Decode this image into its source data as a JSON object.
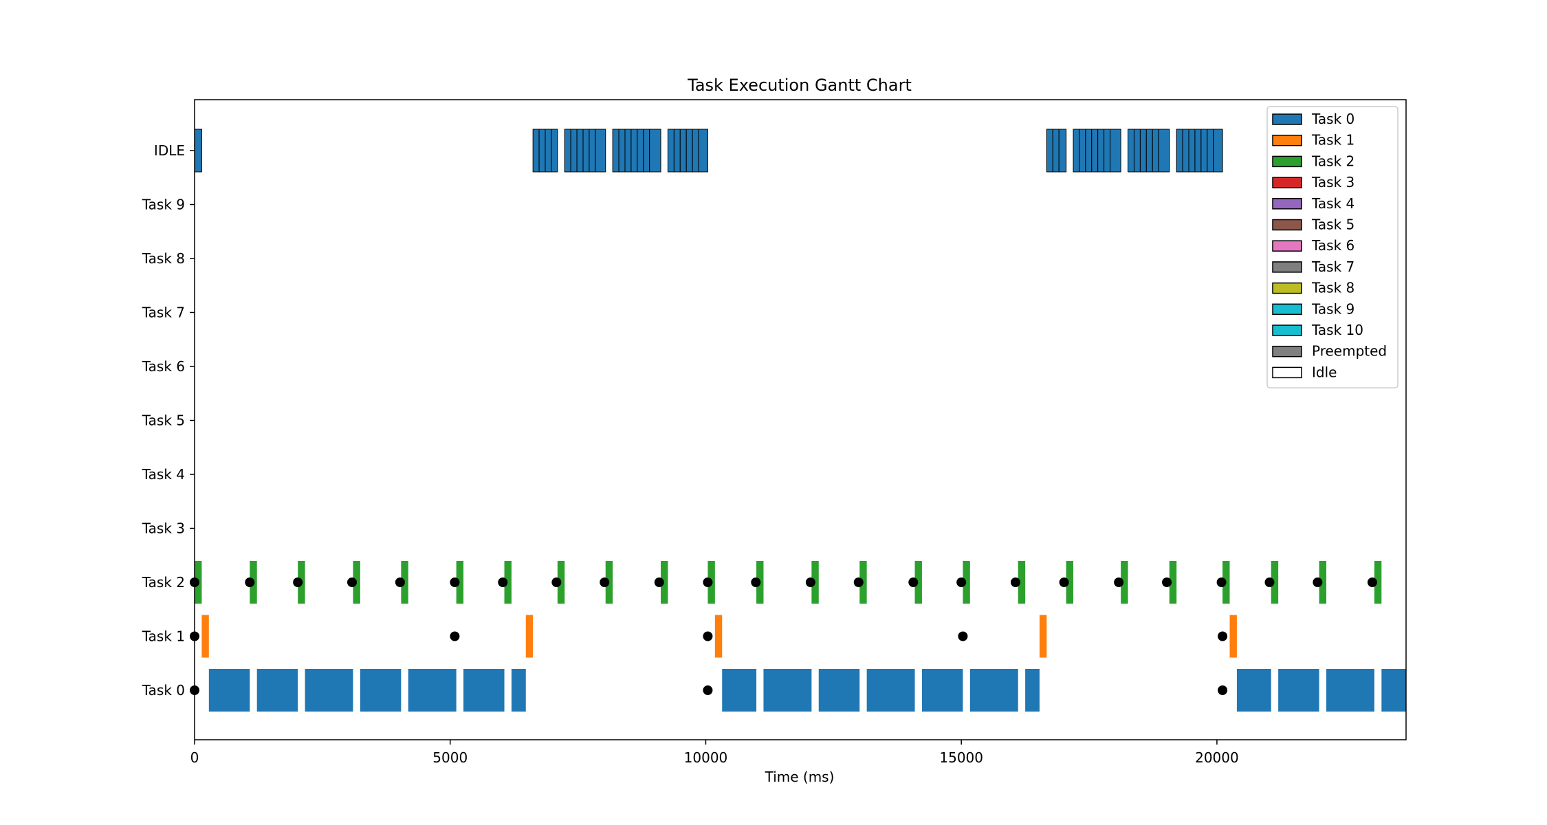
{
  "chart_data": {
    "type": "gantt",
    "title": "Task Execution Gantt Chart",
    "xlabel": "Time (ms)",
    "ylabel": "",
    "xlim": [
      0,
      23700
    ],
    "x_ticks": [
      0,
      5000,
      10000,
      15000,
      20000
    ],
    "rows": [
      "Task 0",
      "Task 1",
      "Task 2",
      "Task 3",
      "Task 4",
      "Task 5",
      "Task 6",
      "Task 7",
      "Task 8",
      "Task 9",
      "IDLE"
    ],
    "grid": false,
    "legend": {
      "position": "top-right",
      "entries": [
        {
          "label": "Task 0",
          "color": "#1f77b4"
        },
        {
          "label": "Task 1",
          "color": "#ff7f0e"
        },
        {
          "label": "Task 2",
          "color": "#2ca02c"
        },
        {
          "label": "Task 3",
          "color": "#d62728"
        },
        {
          "label": "Task 4",
          "color": "#9467bd"
        },
        {
          "label": "Task 5",
          "color": "#8c564b"
        },
        {
          "label": "Task 6",
          "color": "#e377c2"
        },
        {
          "label": "Task 7",
          "color": "#7f7f7f"
        },
        {
          "label": "Task 8",
          "color": "#bcbd22"
        },
        {
          "label": "Task 9",
          "color": "#17becf"
        },
        {
          "label": "Task 10",
          "color": "#17becf"
        },
        {
          "label": "Preempted",
          "color": "#808080"
        },
        {
          "label": "Idle",
          "color": "#ffffff"
        }
      ]
    },
    "series": [
      {
        "row": "Task 0",
        "color": "#1f77b4",
        "segments": [
          [
            280,
            1080
          ],
          [
            1220,
            2020
          ],
          [
            2160,
            3100
          ],
          [
            3240,
            4040
          ],
          [
            4180,
            5120
          ],
          [
            5260,
            6060
          ],
          [
            6200,
            6480
          ],
          [
            10320,
            10990
          ],
          [
            11130,
            12070
          ],
          [
            12210,
            13010
          ],
          [
            13150,
            14090
          ],
          [
            14230,
            15030
          ],
          [
            15170,
            16110
          ],
          [
            16250,
            16530
          ],
          [
            20390,
            21060
          ],
          [
            21200,
            22000
          ],
          [
            22140,
            23080
          ],
          [
            23220,
            23700
          ]
        ]
      },
      {
        "row": "Task 1",
        "color": "#ff7f0e",
        "segments": [
          [
            140,
            280
          ],
          [
            6480,
            6620
          ],
          [
            10180,
            10320
          ],
          [
            16530,
            16670
          ],
          [
            20250,
            20390
          ]
        ]
      },
      {
        "row": "Task 2",
        "color": "#2ca02c",
        "segments": [
          [
            0,
            140
          ],
          [
            1080,
            1220
          ],
          [
            2020,
            2160
          ],
          [
            3100,
            3240
          ],
          [
            4040,
            4180
          ],
          [
            5120,
            5260
          ],
          [
            6060,
            6200
          ],
          [
            7100,
            7240
          ],
          [
            8040,
            8180
          ],
          [
            9120,
            9260
          ],
          [
            10040,
            10180
          ],
          [
            10990,
            11130
          ],
          [
            12070,
            12210
          ],
          [
            13010,
            13150
          ],
          [
            14090,
            14230
          ],
          [
            15030,
            15170
          ],
          [
            16110,
            16250
          ],
          [
            17050,
            17190
          ],
          [
            18120,
            18260
          ],
          [
            19070,
            19210
          ],
          [
            20110,
            20250
          ],
          [
            21060,
            21200
          ],
          [
            22000,
            22140
          ],
          [
            23080,
            23220
          ]
        ]
      },
      {
        "row": "IDLE",
        "color": "#1f77b4",
        "segments": [
          [
            0,
            140
          ],
          [
            6620,
            6740
          ],
          [
            6740,
            6860
          ],
          [
            6860,
            6980
          ],
          [
            6980,
            7100
          ],
          [
            7240,
            7360
          ],
          [
            7360,
            7480
          ],
          [
            7480,
            7600
          ],
          [
            7600,
            7720
          ],
          [
            7720,
            7840
          ],
          [
            7840,
            8040
          ],
          [
            8180,
            8300
          ],
          [
            8300,
            8420
          ],
          [
            8420,
            8540
          ],
          [
            8540,
            8660
          ],
          [
            8660,
            8780
          ],
          [
            8780,
            8900
          ],
          [
            8900,
            9120
          ],
          [
            9260,
            9380
          ],
          [
            9380,
            9500
          ],
          [
            9500,
            9620
          ],
          [
            9620,
            9740
          ],
          [
            9740,
            9860
          ],
          [
            9860,
            10040
          ],
          [
            16670,
            16790
          ],
          [
            16790,
            16910
          ],
          [
            16910,
            17050
          ],
          [
            17190,
            17310
          ],
          [
            17310,
            17430
          ],
          [
            17430,
            17550
          ],
          [
            17550,
            17670
          ],
          [
            17670,
            17790
          ],
          [
            17790,
            17910
          ],
          [
            17910,
            18120
          ],
          [
            18260,
            18380
          ],
          [
            18380,
            18500
          ],
          [
            18500,
            18620
          ],
          [
            18620,
            18740
          ],
          [
            18740,
            18860
          ],
          [
            18860,
            19070
          ],
          [
            19210,
            19330
          ],
          [
            19330,
            19450
          ],
          [
            19450,
            19570
          ],
          [
            19570,
            19690
          ],
          [
            19690,
            19810
          ],
          [
            19810,
            19930
          ],
          [
            19930,
            20110
          ]
        ]
      }
    ],
    "release_markers": [
      {
        "row": "Task 0",
        "x": [
          0,
          10040,
          20110
        ]
      },
      {
        "row": "Task 1",
        "x": [
          0,
          5090,
          10040,
          15030,
          20110
        ]
      },
      {
        "row": "Task 2",
        "x": [
          0,
          1080,
          2020,
          3080,
          4020,
          5090,
          6030,
          7080,
          8020,
          9090,
          10040,
          10980,
          12050,
          12990,
          14060,
          15000,
          16060,
          17010,
          18080,
          19020,
          20090,
          21030,
          21970,
          23040
        ]
      }
    ]
  }
}
